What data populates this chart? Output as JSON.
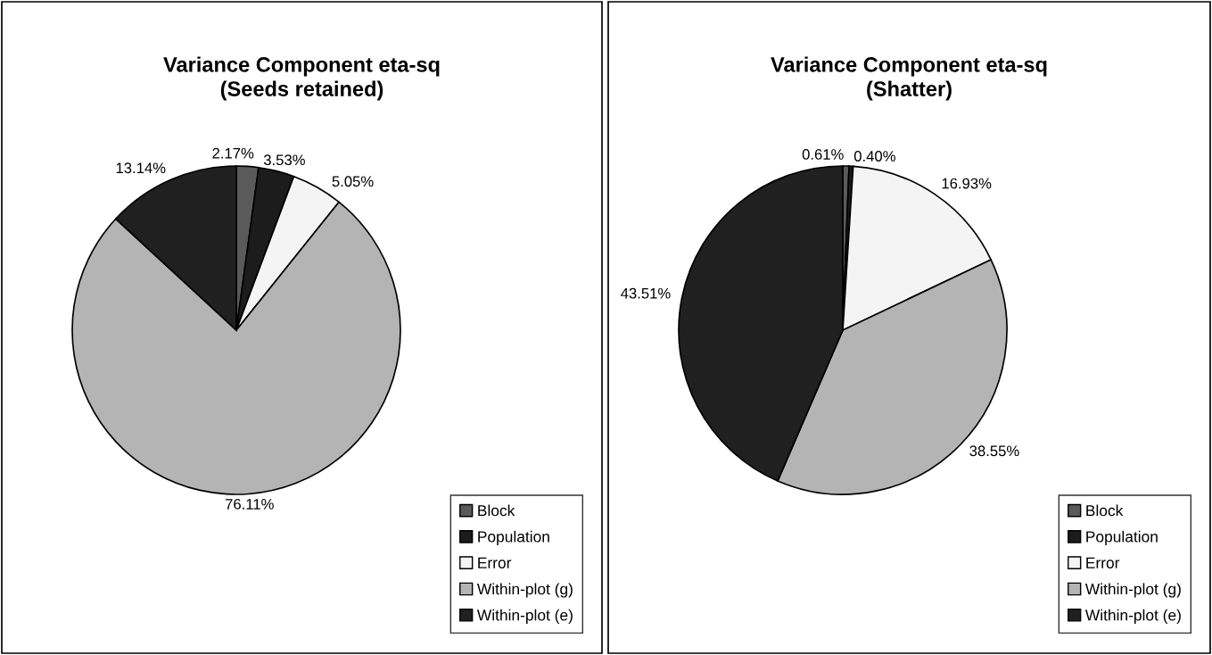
{
  "chart_data": [
    {
      "type": "pie",
      "title": "Variance Component eta-sq\n(Seeds retained)",
      "categories": [
        "Block",
        "Population",
        "Error",
        "Within-plot (g)",
        "Within-plot (e)"
      ],
      "values": [
        2.17,
        3.53,
        5.05,
        76.11,
        13.14
      ],
      "colors": [
        "#5a5a5a",
        "#1c1c1c",
        "#f4f4f4",
        "#b4b4b4",
        "#202020"
      ],
      "value_labels": [
        "2.17%",
        "3.53%",
        "5.05%",
        "76.11%",
        "13.14%"
      ],
      "legend": "bottom right"
    },
    {
      "type": "pie",
      "title": "Variance Component eta-sq\n(Shatter)",
      "categories": [
        "Block",
        "Population",
        "Error",
        "Within-plot (g)",
        "Within-plot (e)"
      ],
      "values": [
        0.61,
        0.4,
        16.93,
        38.55,
        43.51
      ],
      "colors": [
        "#5a5a5a",
        "#1c1c1c",
        "#f4f4f4",
        "#b4b4b4",
        "#202020"
      ],
      "value_labels": [
        "0.61%",
        "0.40%",
        "16.93%",
        "38.55%",
        "43.51%"
      ],
      "legend": "bottom right"
    }
  ]
}
